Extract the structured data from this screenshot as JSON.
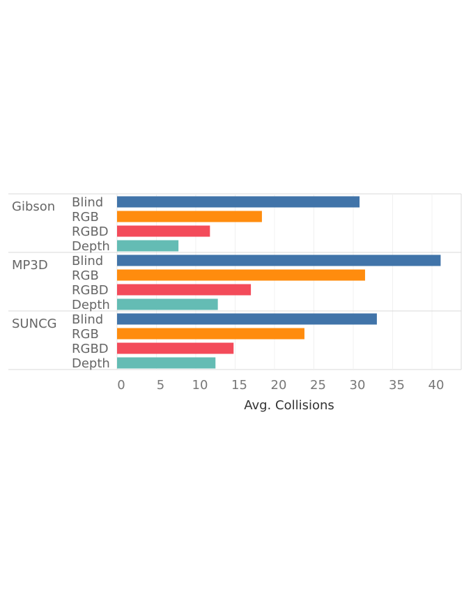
{
  "chart_data": {
    "type": "bar",
    "orientation": "horizontal",
    "xlabel": "Avg. Collisions",
    "xlim": [
      0,
      43
    ],
    "x_ticks": [
      0,
      5,
      10,
      15,
      20,
      25,
      30,
      35,
      40
    ],
    "x_tick_labels": [
      "0",
      "5",
      "10",
      "15",
      "20",
      "25",
      "30",
      "35",
      "40"
    ],
    "grid": true,
    "series_colors": {
      "Blind": "#4174a9",
      "RGB": "#ff8c0e",
      "RGBD": "#f34b5a",
      "Depth": "#64bcb4"
    },
    "groups": [
      {
        "name": "Gibson",
        "categories": [
          "Blind",
          "RGB",
          "RGBD",
          "Depth"
        ],
        "values": [
          30.8,
          18.4,
          11.8,
          7.8
        ]
      },
      {
        "name": "MP3D",
        "categories": [
          "Blind",
          "RGB",
          "RGBD",
          "Depth"
        ],
        "values": [
          41.1,
          31.5,
          17.0,
          12.8
        ]
      },
      {
        "name": "SUNCG",
        "categories": [
          "Blind",
          "RGB",
          "RGBD",
          "Depth"
        ],
        "values": [
          33.0,
          23.8,
          14.8,
          12.5
        ]
      }
    ]
  }
}
